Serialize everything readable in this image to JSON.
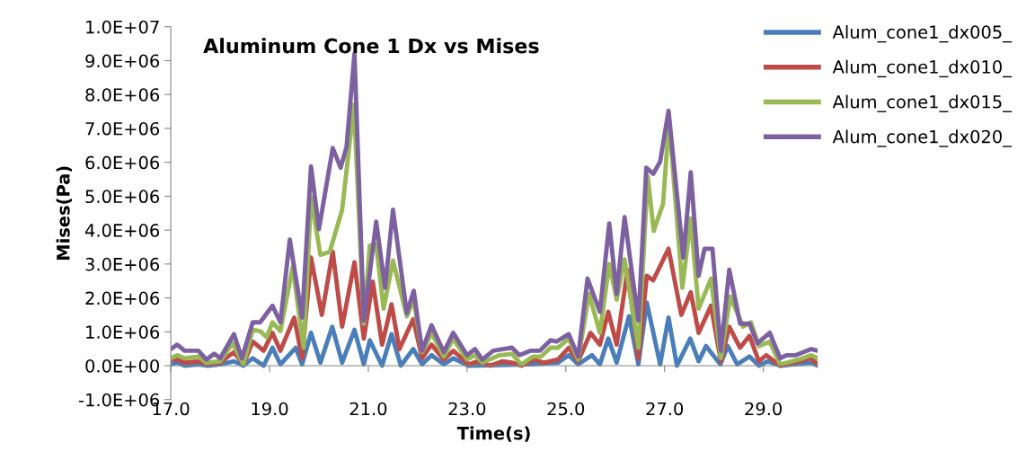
{
  "chart_data": {
    "type": "line",
    "title": "Aluminum Cone 1 Dx vs Mises",
    "xlabel": "Time(s)",
    "ylabel": "Mises(Pa)",
    "xlim": [
      17,
      30.1
    ],
    "xticks": [
      {
        "value": 17,
        "label": "17.0"
      },
      {
        "value": 19,
        "label": "19.0"
      },
      {
        "value": 21,
        "label": "21.0"
      },
      {
        "value": 23,
        "label": "23.0"
      },
      {
        "value": 25,
        "label": "25.0"
      },
      {
        "value": 27,
        "label": "27.0"
      },
      {
        "value": 29,
        "label": "29.0"
      }
    ],
    "ylim": [
      -1000000,
      10000000
    ],
    "yticks": [
      {
        "value": -1000000,
        "label": "-1.0E+06"
      },
      {
        "value": 0,
        "label": "0.0E+00"
      },
      {
        "value": 1000000,
        "label": "1.0E+06"
      },
      {
        "value": 2000000,
        "label": "2.0E+06"
      },
      {
        "value": 3000000,
        "label": "3.0E+06"
      },
      {
        "value": 4000000,
        "label": "4.0E+06"
      },
      {
        "value": 5000000,
        "label": "5.0E+06"
      },
      {
        "value": 6000000,
        "label": "6.0E+06"
      },
      {
        "value": 7000000,
        "label": "7.0E+06"
      },
      {
        "value": 8000000,
        "label": "8.0E+06"
      },
      {
        "value": 9000000,
        "label": "9.0E+06"
      },
      {
        "value": 10000000,
        "label": "1.0E+07"
      }
    ],
    "grid": false,
    "legend": "right",
    "marker": "none",
    "line_style": "solid",
    "series": [
      {
        "name": "Alum_cone1_dx005_",
        "color": "#4a7ebb",
        "x": [
          17.0,
          17.13,
          17.28,
          17.56,
          17.75,
          18.0,
          18.28,
          18.47,
          18.66,
          18.88,
          19.06,
          19.22,
          19.53,
          19.66,
          19.84,
          20.03,
          20.27,
          20.47,
          20.72,
          20.91,
          21.03,
          21.28,
          21.47,
          21.66,
          21.91,
          22.09,
          22.28,
          22.53,
          22.72,
          23.03,
          24.28,
          24.84,
          25.06,
          25.25,
          25.53,
          25.69,
          25.86,
          26.03,
          26.28,
          26.47,
          26.64,
          26.91,
          27.08,
          27.25,
          27.52,
          27.69,
          27.84,
          28.13,
          28.28,
          28.47,
          28.72,
          28.91,
          29.09,
          29.34,
          29.97,
          30.1
        ],
        "values": [
          40000,
          90000,
          0,
          40000,
          0,
          40000,
          130000,
          0,
          220000,
          0,
          530000,
          40000,
          530000,
          40000,
          970000,
          90000,
          1150000,
          90000,
          1060000,
          40000,
          750000,
          0,
          930000,
          0,
          490000,
          40000,
          310000,
          40000,
          220000,
          0,
          40000,
          90000,
          310000,
          40000,
          310000,
          40000,
          800000,
          90000,
          1460000,
          40000,
          1860000,
          40000,
          1420000,
          0,
          800000,
          130000,
          580000,
          40000,
          580000,
          40000,
          270000,
          0,
          130000,
          0,
          90000,
          0
        ]
      },
      {
        "name": "Alum_cone1_dx010_",
        "color": "#be4b48",
        "x": [
          17.0,
          17.13,
          17.28,
          17.56,
          17.75,
          18.0,
          18.28,
          18.47,
          18.66,
          18.88,
          19.06,
          19.22,
          19.5,
          19.66,
          19.84,
          20.06,
          20.28,
          20.47,
          20.72,
          20.91,
          21.09,
          21.28,
          21.47,
          21.63,
          21.91,
          22.09,
          22.28,
          22.53,
          22.72,
          23.03,
          23.22,
          23.47,
          23.72,
          23.91,
          24.1,
          24.34,
          24.56,
          24.84,
          25.06,
          25.25,
          25.5,
          25.69,
          25.86,
          26.03,
          26.25,
          26.47,
          26.64,
          26.77,
          27.08,
          27.34,
          27.53,
          27.69,
          27.94,
          28.14,
          28.31,
          28.53,
          28.72,
          28.91,
          29.06,
          29.34,
          29.72,
          29.97,
          30.1
        ],
        "values": [
          180000,
          180000,
          90000,
          130000,
          40000,
          90000,
          400000,
          40000,
          710000,
          440000,
          970000,
          440000,
          1420000,
          220000,
          3190000,
          1500000,
          3360000,
          1150000,
          3050000,
          800000,
          2480000,
          620000,
          1810000,
          490000,
          1370000,
          220000,
          620000,
          180000,
          440000,
          40000,
          130000,
          0,
          130000,
          90000,
          0,
          180000,
          90000,
          180000,
          530000,
          130000,
          970000,
          620000,
          1590000,
          620000,
          2830000,
          220000,
          2650000,
          2520000,
          3450000,
          1500000,
          2170000,
          970000,
          1770000,
          130000,
          1150000,
          530000,
          880000,
          130000,
          310000,
          0,
          130000,
          220000,
          40000
        ]
      },
      {
        "name": "Alum_cone1_dx015_",
        "color": "#98b954",
        "x": [
          17.0,
          17.13,
          17.28,
          17.56,
          17.72,
          18.0,
          18.25,
          18.47,
          18.66,
          18.81,
          18.94,
          19.06,
          19.22,
          19.47,
          19.69,
          19.84,
          20.03,
          20.22,
          20.47,
          20.71,
          20.91,
          21.03,
          21.16,
          21.31,
          21.5,
          21.78,
          21.92,
          22.09,
          22.28,
          22.53,
          22.72,
          23.0,
          23.16,
          23.31,
          23.66,
          23.91,
          24.1,
          24.34,
          24.5,
          24.69,
          24.84,
          25.06,
          25.25,
          25.47,
          25.69,
          25.88,
          26.03,
          26.19,
          26.47,
          26.66,
          26.78,
          26.97,
          27.09,
          27.36,
          27.53,
          27.69,
          27.94,
          28.14,
          28.33,
          28.59,
          28.75,
          28.91,
          29.13,
          29.34,
          29.72,
          29.97,
          30.1
        ],
        "values": [
          220000,
          310000,
          220000,
          270000,
          90000,
          130000,
          660000,
          40000,
          1060000,
          1020000,
          840000,
          1280000,
          1020000,
          2920000,
          530000,
          4960000,
          3270000,
          3360000,
          4600000,
          7700000,
          1240000,
          3540000,
          3580000,
          1680000,
          3100000,
          1460000,
          1950000,
          400000,
          970000,
          270000,
          800000,
          180000,
          310000,
          90000,
          310000,
          350000,
          40000,
          270000,
          270000,
          530000,
          530000,
          800000,
          180000,
          2120000,
          970000,
          3000000,
          1950000,
          3140000,
          530000,
          5580000,
          3980000,
          4780000,
          7260000,
          2300000,
          4340000,
          1680000,
          2570000,
          220000,
          2040000,
          1150000,
          1280000,
          580000,
          710000,
          40000,
          180000,
          310000,
          220000
        ]
      },
      {
        "name": "Alum_cone1_dx020_",
        "color": "#7d60a0",
        "x": [
          17.0,
          17.13,
          17.28,
          17.56,
          17.72,
          17.88,
          18.0,
          18.28,
          18.44,
          18.66,
          18.81,
          19.06,
          19.22,
          19.41,
          19.66,
          19.84,
          20.0,
          20.28,
          20.44,
          20.56,
          20.72,
          20.91,
          21.16,
          21.34,
          21.5,
          21.78,
          21.92,
          22.09,
          22.28,
          22.53,
          22.72,
          23.0,
          23.16,
          23.31,
          23.53,
          23.72,
          23.91,
          24.06,
          24.28,
          24.47,
          24.69,
          24.81,
          25.06,
          25.25,
          25.44,
          25.69,
          25.88,
          26.03,
          26.19,
          26.47,
          26.63,
          26.77,
          26.91,
          27.08,
          27.38,
          27.53,
          27.69,
          27.81,
          27.97,
          28.14,
          28.31,
          28.53,
          28.72,
          28.88,
          29.13,
          29.34,
          29.47,
          29.66,
          29.97,
          30.1
        ],
        "values": [
          490000,
          620000,
          440000,
          440000,
          180000,
          350000,
          220000,
          930000,
          220000,
          1280000,
          1280000,
          1770000,
          1280000,
          3720000,
          1420000,
          5880000,
          4030000,
          6420000,
          5840000,
          6460000,
          9200000,
          1330000,
          4250000,
          2300000,
          4600000,
          1550000,
          2210000,
          440000,
          1190000,
          400000,
          970000,
          310000,
          490000,
          180000,
          440000,
          490000,
          530000,
          310000,
          440000,
          440000,
          750000,
          710000,
          930000,
          270000,
          2570000,
          1590000,
          4200000,
          2120000,
          4380000,
          1330000,
          5840000,
          5660000,
          6020000,
          7520000,
          3190000,
          5710000,
          2650000,
          3450000,
          3450000,
          440000,
          2830000,
          1240000,
          1240000,
          660000,
          970000,
          220000,
          310000,
          310000,
          490000,
          440000
        ]
      }
    ]
  }
}
